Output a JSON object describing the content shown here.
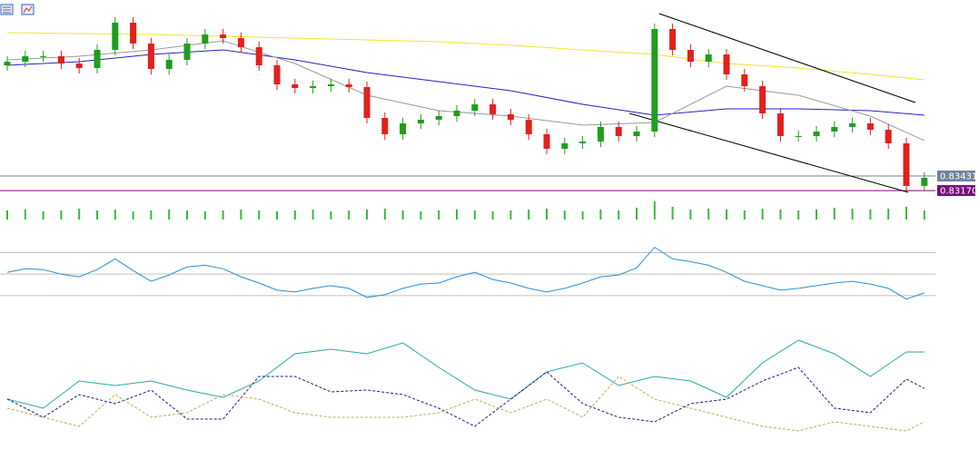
{
  "chart_data": [
    {
      "type": "candlestick",
      "ylim": [
        0.8309,
        0.8659
      ],
      "up_color": "#1e9e1e",
      "down_color": "#e3201c",
      "open": [
        0.85418,
        0.85483,
        0.85581,
        0.85581,
        0.8545,
        0.85369,
        0.85695,
        0.86183,
        0.85809,
        0.85353,
        0.85516,
        0.85809,
        0.85971,
        0.85906,
        0.85743,
        0.85418,
        0.85076,
        0.85011,
        0.85043,
        0.85076,
        0.85027,
        0.84474,
        0.84181,
        0.84376,
        0.84441,
        0.84506,
        0.84604,
        0.84718,
        0.84539,
        0.84441,
        0.84181,
        0.8392,
        0.84018,
        0.8405,
        0.84311,
        0.84148,
        0.84229,
        0.86069,
        0.85695,
        0.85483,
        0.85613,
        0.85255,
        0.85043,
        0.84555,
        0.84148,
        0.84148,
        0.84229,
        0.84311,
        0.84376,
        0.84262,
        0.84018,
        0.83253
      ],
      "high": [
        0.85583,
        0.85681,
        0.85681,
        0.85681,
        0.8555,
        0.85795,
        0.86283,
        0.86283,
        0.85909,
        0.85616,
        0.85909,
        0.86071,
        0.86071,
        0.86006,
        0.85843,
        0.85518,
        0.85176,
        0.85143,
        0.85176,
        0.85176,
        0.85127,
        0.84574,
        0.84476,
        0.84541,
        0.84606,
        0.84704,
        0.84818,
        0.84818,
        0.84639,
        0.84541,
        0.84281,
        0.84118,
        0.8415,
        0.84411,
        0.84411,
        0.84329,
        0.86169,
        0.86169,
        0.85795,
        0.85713,
        0.85713,
        0.85355,
        0.85143,
        0.84655,
        0.84248,
        0.84329,
        0.84411,
        0.84476,
        0.84476,
        0.84362,
        0.84118,
        0.83499
      ],
      "low": [
        0.85318,
        0.85383,
        0.85481,
        0.8535,
        0.85269,
        0.85269,
        0.85595,
        0.85709,
        0.85253,
        0.85253,
        0.85416,
        0.85709,
        0.85806,
        0.85643,
        0.85318,
        0.84976,
        0.84911,
        0.84911,
        0.84943,
        0.84927,
        0.84374,
        0.84081,
        0.84081,
        0.84276,
        0.84341,
        0.84406,
        0.84504,
        0.84439,
        0.84341,
        0.84081,
        0.8382,
        0.8382,
        0.83918,
        0.8395,
        0.84048,
        0.84048,
        0.84129,
        0.85595,
        0.85383,
        0.85383,
        0.85155,
        0.84943,
        0.84455,
        0.84048,
        0.84048,
        0.84048,
        0.84129,
        0.84211,
        0.84162,
        0.83918,
        0.83153,
        0.83153
      ],
      "close": [
        0.85483,
        0.85581,
        0.85581,
        0.8545,
        0.85369,
        0.85695,
        0.86183,
        0.85809,
        0.85353,
        0.85516,
        0.85809,
        0.85971,
        0.85906,
        0.85743,
        0.85418,
        0.85076,
        0.85011,
        0.85043,
        0.85076,
        0.85027,
        0.84474,
        0.84181,
        0.84376,
        0.84441,
        0.84506,
        0.84604,
        0.84718,
        0.84539,
        0.84441,
        0.84181,
        0.8392,
        0.84018,
        0.8405,
        0.84311,
        0.84148,
        0.84229,
        0.86069,
        0.85695,
        0.85483,
        0.85613,
        0.85255,
        0.85043,
        0.84555,
        0.84148,
        0.84148,
        0.84229,
        0.84311,
        0.84376,
        0.84262,
        0.84018,
        0.83253,
        0.83399
      ],
      "series": [
        {
          "color": "#f2e62a",
          "x": [
            0,
            4,
            8,
            12,
            16,
            20,
            24,
            28,
            32,
            36,
            40,
            44,
            48,
            51
          ],
          "values": [
            0.86004,
            0.85988,
            0.85971,
            0.85939,
            0.85906,
            0.85874,
            0.85841,
            0.85776,
            0.85695,
            0.85613,
            0.8545,
            0.85369,
            0.85255,
            0.85157
          ]
        },
        {
          "color": "#2323c8",
          "x": [
            0,
            4,
            8,
            12,
            16,
            20,
            24,
            28,
            32,
            36,
            40,
            44,
            48,
            51
          ],
          "values": [
            0.85418,
            0.85483,
            0.85613,
            0.85695,
            0.85516,
            0.85288,
            0.85125,
            0.84962,
            0.84718,
            0.84522,
            0.84636,
            0.84636,
            0.84604,
            0.84522
          ]
        },
        {
          "color": "#9a9a9a",
          "x": [
            0,
            4,
            8,
            12,
            16,
            20,
            24,
            28,
            32,
            36,
            40,
            44,
            48,
            51
          ],
          "values": [
            0.85516,
            0.85581,
            0.85695,
            0.85857,
            0.8545,
            0.84881,
            0.84604,
            0.84506,
            0.84343,
            0.84392,
            0.85043,
            0.84881,
            0.84506,
            0.84067
          ]
        },
        {
          "color": "#000000",
          "x": [
            36.25,
            50.5
          ],
          "values": [
            0.86346,
            0.8475
          ]
        },
        {
          "color": "#000000",
          "x": [
            34.6,
            50.1
          ],
          "values": [
            0.84555,
            0.83139
          ]
        }
      ],
      "price_levels": [
        {
          "value": 0.83431,
          "label": "0.83431",
          "color": "#6f8396"
        },
        {
          "value": 0.8317,
          "label": "0.83170",
          "color": "#7d0a7d"
        }
      ]
    },
    {
      "type": "volume",
      "ylim": [
        0,
        2200
      ],
      "color": "#3cb83c",
      "values": [
        1000,
        1100,
        900,
        1000,
        1200,
        1000,
        1100,
        900,
        1000,
        1100,
        1000,
        900,
        1000,
        1100,
        1000,
        900,
        1000,
        1100,
        900,
        1000,
        1100,
        1200,
        1000,
        900,
        1000,
        1100,
        1000,
        900,
        1000,
        1100,
        1200,
        1000,
        900,
        1100,
        1000,
        1300,
        2000,
        1400,
        1100,
        1200,
        1100,
        1000,
        1200,
        1100,
        1000,
        1100,
        1300,
        1200,
        1100,
        1200,
        1400,
        1000
      ]
    },
    {
      "type": "line",
      "ylim": [
        18,
        84
      ],
      "levels": [
        30,
        50,
        70
      ],
      "color": "#2a8fd8",
      "values": [
        51.7,
        55,
        54.2,
        50,
        47.5,
        54.2,
        64.2,
        53.3,
        43.3,
        49.2,
        56.7,
        58.3,
        55,
        47.5,
        41.7,
        35,
        33.3,
        36.7,
        39.2,
        36.7,
        28.3,
        30.8,
        36.7,
        40.8,
        41.7,
        47.5,
        51.7,
        45,
        41.7,
        36.7,
        33.3,
        36.7,
        41.7,
        47.5,
        49.2,
        55.8,
        75,
        64.2,
        61.7,
        58.3,
        51.7,
        43.3,
        39.2,
        35,
        36.7,
        39.2,
        41.7,
        43.3,
        40.8,
        36.7,
        26.7,
        32.5
      ]
    },
    {
      "type": "line",
      "ylim": [
        0,
        56
      ],
      "x": [
        0,
        2,
        4,
        6,
        8,
        10,
        12,
        14,
        16,
        18,
        20,
        22,
        24,
        26,
        28,
        30,
        32,
        34,
        36,
        38,
        40,
        42,
        44,
        46,
        48,
        50,
        51
      ],
      "series": [
        {
          "color": "#26aaa6",
          "dashed": false,
          "values": [
            20,
            16,
            28,
            26,
            28,
            24,
            20.8,
            28,
            40,
            42,
            40,
            44.8,
            34,
            24,
            20,
            32,
            36,
            26,
            30,
            28,
            20.8,
            36,
            46,
            40,
            30,
            40.8,
            40.8
          ]
        },
        {
          "color": "#1c1c8c",
          "dashed": true,
          "values": [
            20,
            12,
            22,
            18,
            24,
            11.2,
            11.2,
            30,
            30,
            23.2,
            24,
            22,
            16,
            8,
            20,
            32,
            18,
            12,
            10,
            18,
            20,
            28,
            34,
            16,
            14,
            28.8,
            24.8
          ]
        },
        {
          "color": "#c2ad55",
          "dashed": true,
          "values": [
            16,
            12,
            8,
            22,
            12,
            14,
            22,
            20,
            14,
            12,
            12,
            12,
            14,
            20,
            14,
            20,
            12,
            30,
            20,
            16,
            12,
            8,
            6,
            10,
            8,
            6,
            10
          ]
        }
      ]
    }
  ]
}
